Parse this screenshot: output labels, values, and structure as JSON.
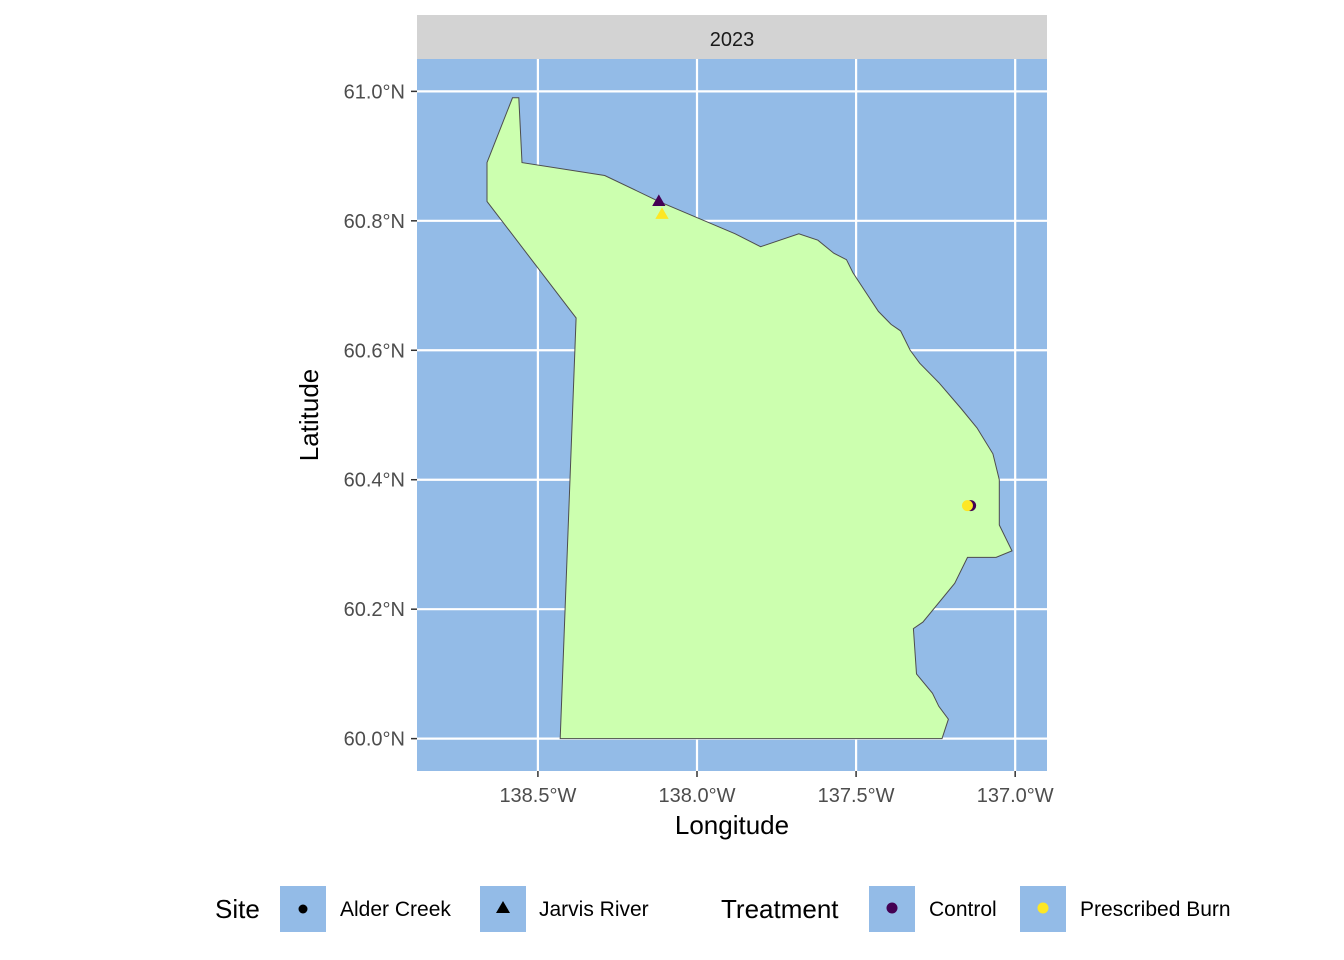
{
  "facet": {
    "label": "2023"
  },
  "axes": {
    "x_title": "Longitude",
    "y_title": "Latitude",
    "x_ticks": [
      {
        "value": -138.5,
        "label": "138.5°W"
      },
      {
        "value": -138.0,
        "label": "138.0°W"
      },
      {
        "value": -137.5,
        "label": "137.5°W"
      },
      {
        "value": -137.0,
        "label": "137.0°W"
      }
    ],
    "y_ticks": [
      {
        "value": 60.0,
        "label": "60.0°N"
      },
      {
        "value": 60.2,
        "label": "60.2°N"
      },
      {
        "value": 60.4,
        "label": "60.4°N"
      },
      {
        "value": 60.6,
        "label": "60.6°N"
      },
      {
        "value": 60.8,
        "label": "60.8°N"
      },
      {
        "value": 61.0,
        "label": "61.0°N"
      }
    ],
    "xlim": [
      -138.88,
      -136.9
    ],
    "ylim": [
      59.95,
      61.05
    ]
  },
  "colors": {
    "water": "#93bbe7",
    "land": "#ccffaf",
    "outline": "#4d4d4d",
    "grid": "#ffffff",
    "strip": "#d3d3d3",
    "control": "#440154",
    "prescribed_burn": "#fde725"
  },
  "region_outline": [
    [
      -138.66,
      60.89
    ],
    [
      -138.58,
      60.99
    ],
    [
      -138.56,
      60.99
    ],
    [
      -138.55,
      60.89
    ],
    [
      -138.29,
      60.87
    ],
    [
      -138.12,
      60.83
    ],
    [
      -137.88,
      60.78
    ],
    [
      -137.8,
      60.76
    ],
    [
      -137.68,
      60.78
    ],
    [
      -137.62,
      60.77
    ],
    [
      -137.57,
      60.75
    ],
    [
      -137.53,
      60.74
    ],
    [
      -137.51,
      60.72
    ],
    [
      -137.47,
      60.69
    ],
    [
      -137.43,
      60.66
    ],
    [
      -137.39,
      60.64
    ],
    [
      -137.36,
      60.63
    ],
    [
      -137.33,
      60.6
    ],
    [
      -137.3,
      60.58
    ],
    [
      -137.24,
      60.55
    ],
    [
      -137.17,
      60.51
    ],
    [
      -137.12,
      60.48
    ],
    [
      -137.07,
      60.44
    ],
    [
      -137.05,
      60.4
    ],
    [
      -137.05,
      60.33
    ],
    [
      -137.01,
      60.29
    ],
    [
      -137.06,
      60.28
    ],
    [
      -137.15,
      60.28
    ],
    [
      -137.19,
      60.24
    ],
    [
      -137.29,
      60.18
    ],
    [
      -137.32,
      60.17
    ],
    [
      -137.31,
      60.1
    ],
    [
      -137.26,
      60.07
    ],
    [
      -137.24,
      60.05
    ],
    [
      -137.21,
      60.03
    ],
    [
      -137.23,
      60.0
    ],
    [
      -138.43,
      60.0
    ],
    [
      -138.38,
      60.65
    ],
    [
      -138.66,
      60.83
    ],
    [
      -138.66,
      60.89
    ]
  ],
  "points": [
    {
      "site": "Jarvis River",
      "treatment": "Control",
      "lon": -138.12,
      "lat": 60.83
    },
    {
      "site": "Jarvis River",
      "treatment": "Prescribed Burn",
      "lon": -138.11,
      "lat": 60.81
    },
    {
      "site": "Alder Creek",
      "treatment": "Control",
      "lon": -137.14,
      "lat": 60.36
    },
    {
      "site": "Alder Creek",
      "treatment": "Prescribed Burn",
      "lon": -137.15,
      "lat": 60.36
    }
  ],
  "legend": {
    "site_title": "Site",
    "site_items": [
      {
        "label": "Alder Creek",
        "shape": "circle"
      },
      {
        "label": "Jarvis River",
        "shape": "triangle"
      }
    ],
    "treatment_title": "Treatment",
    "treatment_items": [
      {
        "label": "Control",
        "color": "#440154"
      },
      {
        "label": "Prescribed Burn",
        "color": "#fde725"
      }
    ]
  }
}
